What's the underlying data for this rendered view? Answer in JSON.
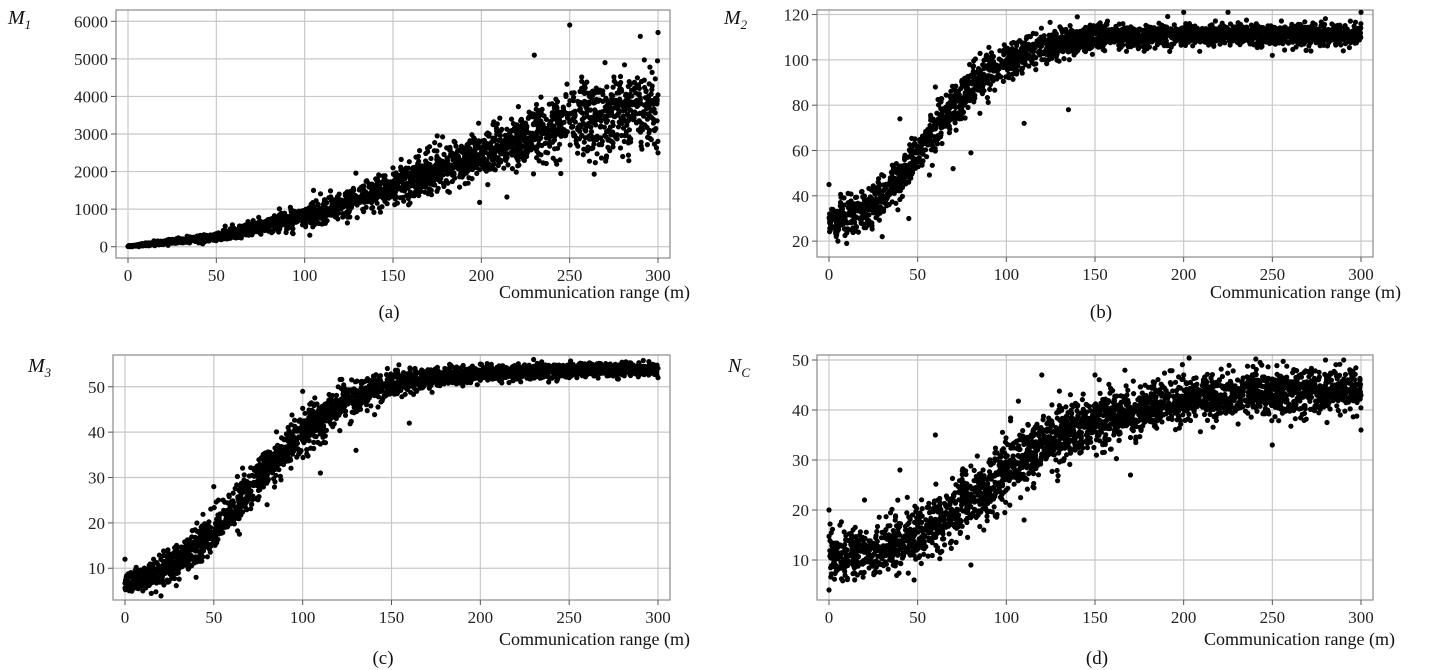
{
  "chart_data": [
    {
      "id": "a",
      "type": "scatter",
      "caption": "(a)",
      "ylabel": "M",
      "ylabel_sub": "1",
      "xlabel": "Communication range (m)",
      "xlim": [
        0,
        300
      ],
      "ylim": [
        -300,
        6300
      ],
      "xticks": [
        0,
        50,
        100,
        150,
        200,
        250,
        300
      ],
      "yticks": [
        0,
        1000,
        2000,
        3000,
        4000,
        5000,
        6000
      ],
      "grid": true,
      "points": [
        [
          0,
          10
        ],
        [
          10,
          30
        ],
        [
          20,
          60
        ],
        [
          30,
          110
        ],
        [
          40,
          180
        ],
        [
          50,
          260
        ],
        [
          60,
          350
        ],
        [
          70,
          450
        ],
        [
          80,
          560
        ],
        [
          90,
          680
        ],
        [
          100,
          810
        ],
        [
          110,
          950
        ],
        [
          120,
          1100
        ],
        [
          130,
          1260
        ],
        [
          140,
          1420
        ],
        [
          150,
          1590
        ],
        [
          160,
          1760
        ],
        [
          170,
          1930
        ],
        [
          180,
          2100
        ],
        [
          190,
          2280
        ],
        [
          200,
          2460
        ],
        [
          210,
          2630
        ],
        [
          220,
          2810
        ],
        [
          230,
          2980
        ],
        [
          240,
          3150
        ],
        [
          250,
          3310
        ],
        [
          260,
          3470
        ],
        [
          270,
          3620
        ],
        [
          280,
          3770
        ],
        [
          290,
          3910
        ],
        [
          300,
          4040
        ],
        [
          55,
          550
        ],
        [
          105,
          1500
        ],
        [
          150,
          2100
        ],
        [
          175,
          2950
        ],
        [
          200,
          2600
        ],
        [
          230,
          5100
        ],
        [
          250,
          5900
        ],
        [
          270,
          4900
        ],
        [
          290,
          5600
        ],
        [
          300,
          5700
        ],
        [
          280,
          2400
        ],
        [
          260,
          2550
        ],
        [
          245,
          1950
        ],
        [
          300,
          2500
        ]
      ],
      "band": {
        "center_pts": [
          [
            0,
            10
          ],
          [
            50,
            260
          ],
          [
            100,
            810
          ],
          [
            150,
            1590
          ],
          [
            200,
            2460
          ],
          [
            250,
            3310
          ],
          [
            300,
            3800
          ]
        ],
        "spread_pts": [
          [
            0,
            15
          ],
          [
            50,
            100
          ],
          [
            100,
            250
          ],
          [
            150,
            400
          ],
          [
            200,
            550
          ],
          [
            250,
            800
          ],
          [
            300,
            1000
          ]
        ],
        "n": 2600
      }
    },
    {
      "id": "b",
      "type": "scatter",
      "caption": "(b)",
      "ylabel": "M",
      "ylabel_sub": "2",
      "xlabel": "Communication range (m)",
      "xlim": [
        0,
        300
      ],
      "ylim": [
        13,
        122
      ],
      "xticks": [
        0,
        50,
        100,
        150,
        200,
        250,
        300
      ],
      "yticks": [
        20,
        40,
        60,
        80,
        100,
        120
      ],
      "grid": true,
      "points": [
        [
          0,
          45
        ],
        [
          5,
          20
        ],
        [
          10,
          19
        ],
        [
          20,
          38
        ],
        [
          30,
          22
        ],
        [
          40,
          74
        ],
        [
          45,
          30
        ],
        [
          60,
          88
        ],
        [
          70,
          52
        ],
        [
          80,
          59
        ],
        [
          110,
          72
        ],
        [
          135,
          78
        ],
        [
          140,
          119
        ],
        [
          150,
          112
        ],
        [
          200,
          121
        ],
        [
          225,
          121
        ],
        [
          250,
          102
        ],
        [
          300,
          121
        ],
        [
          290,
          104
        ]
      ],
      "band": {
        "center_pts": [
          [
            0,
            28
          ],
          [
            20,
            33
          ],
          [
            40,
            46
          ],
          [
            60,
            70
          ],
          [
            80,
            88
          ],
          [
            100,
            99
          ],
          [
            120,
            106
          ],
          [
            150,
            110
          ],
          [
            200,
            111
          ],
          [
            250,
            111
          ],
          [
            300,
            111
          ]
        ],
        "spread_pts": [
          [
            0,
            8
          ],
          [
            30,
            8
          ],
          [
            60,
            9
          ],
          [
            90,
            8
          ],
          [
            120,
            6
          ],
          [
            150,
            5
          ],
          [
            200,
            4
          ],
          [
            300,
            4
          ]
        ],
        "n": 2600
      }
    },
    {
      "id": "c",
      "type": "scatter",
      "caption": "(c)",
      "ylabel": "M",
      "ylabel_sub": "3",
      "xlabel": "Communication range (m)",
      "xlim": [
        0,
        300
      ],
      "ylim": [
        3,
        57
      ],
      "xticks": [
        0,
        50,
        100,
        150,
        200,
        250,
        300
      ],
      "yticks": [
        10,
        20,
        30,
        40,
        50
      ],
      "grid": true,
      "points": [
        [
          0,
          12
        ],
        [
          10,
          5
        ],
        [
          40,
          8
        ],
        [
          50,
          28
        ],
        [
          80,
          24
        ],
        [
          100,
          49
        ],
        [
          110,
          31
        ],
        [
          120,
          50
        ],
        [
          130,
          36
        ],
        [
          160,
          42
        ],
        [
          200,
          55
        ],
        [
          230,
          56
        ],
        [
          250,
          52
        ],
        [
          300,
          52
        ]
      ],
      "band": {
        "center_pts": [
          [
            0,
            7
          ],
          [
            20,
            9
          ],
          [
            50,
            18
          ],
          [
            80,
            32
          ],
          [
            100,
            40
          ],
          [
            120,
            46
          ],
          [
            150,
            51
          ],
          [
            200,
            53
          ],
          [
            250,
            53.5
          ],
          [
            300,
            54
          ]
        ],
        "spread_pts": [
          [
            0,
            2
          ],
          [
            20,
            3
          ],
          [
            50,
            4
          ],
          [
            80,
            4
          ],
          [
            110,
            4
          ],
          [
            150,
            2.5
          ],
          [
            200,
            1.5
          ],
          [
            300,
            1.2
          ]
        ],
        "n": 2600
      }
    },
    {
      "id": "d",
      "type": "scatter",
      "caption": "(d)",
      "ylabel": "N",
      "ylabel_sub": "C",
      "xlabel": "Communication range (m)",
      "xlim": [
        0,
        300
      ],
      "ylim": [
        2,
        51
      ],
      "xticks": [
        0,
        50,
        100,
        150,
        200,
        250,
        300
      ],
      "yticks": [
        10,
        20,
        30,
        40,
        50
      ],
      "grid": true,
      "points": [
        [
          0,
          4
        ],
        [
          0,
          20
        ],
        [
          20,
          22
        ],
        [
          40,
          28
        ],
        [
          48,
          6
        ],
        [
          60,
          35
        ],
        [
          80,
          9
        ],
        [
          110,
          18
        ],
        [
          120,
          47
        ],
        [
          150,
          47
        ],
        [
          170,
          27
        ],
        [
          200,
          47
        ],
        [
          250,
          33
        ],
        [
          280,
          50
        ],
        [
          300,
          36
        ]
      ],
      "band": {
        "center_pts": [
          [
            0,
            11
          ],
          [
            30,
            12
          ],
          [
            50,
            15
          ],
          [
            80,
            22
          ],
          [
            100,
            28
          ],
          [
            130,
            35
          ],
          [
            150,
            38
          ],
          [
            200,
            42
          ],
          [
            250,
            43.5
          ],
          [
            300,
            44
          ]
        ],
        "spread_pts": [
          [
            0,
            4
          ],
          [
            50,
            5
          ],
          [
            100,
            6
          ],
          [
            150,
            5
          ],
          [
            200,
            4
          ],
          [
            300,
            4
          ]
        ],
        "n": 2800
      }
    }
  ]
}
